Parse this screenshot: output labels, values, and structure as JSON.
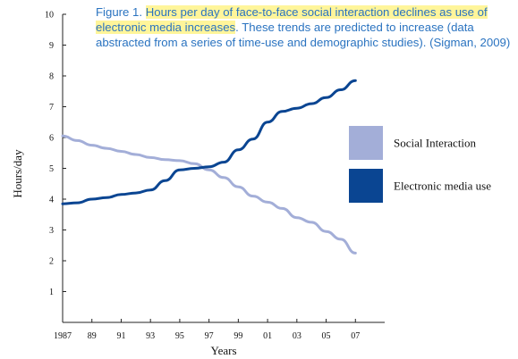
{
  "caption": {
    "prefix": "Figure 1. ",
    "highlight": "Hours per day of face-to-face social interaction declines as use of electronic media increases",
    "rest": ". These trends are predicted to increase (data abstracted from a series of time-use and demographic studies). (Sigman, 2009)"
  },
  "chart_data": {
    "type": "line",
    "xlabel": "Years",
    "ylabel": "Hours/day",
    "xlim": [
      1987,
      2009
    ],
    "ylim": [
      0,
      10
    ],
    "x_ticks": [
      1987,
      1989,
      1991,
      1993,
      1995,
      1997,
      1999,
      2001,
      2003,
      2005,
      2007
    ],
    "x_tick_labels": [
      "1987",
      "89",
      "91",
      "93",
      "95",
      "97",
      "99",
      "01",
      "03",
      "05",
      "07"
    ],
    "y_ticks": [
      1,
      2,
      3,
      4,
      5,
      6,
      7,
      8,
      9,
      10
    ],
    "y_tick_labels": [
      "1",
      "2",
      "3",
      "4",
      "5",
      "6",
      "7",
      "8",
      "9",
      "10"
    ],
    "grid": false,
    "legend_position": "right",
    "series": [
      {
        "name": "Social Interaction",
        "color": "#a3aed8",
        "points": [
          [
            1987,
            6.05
          ],
          [
            1988,
            5.9
          ],
          [
            1989,
            5.75
          ],
          [
            1990,
            5.65
          ],
          [
            1991,
            5.55
          ],
          [
            1992,
            5.45
          ],
          [
            1993,
            5.35
          ],
          [
            1994,
            5.28
          ],
          [
            1995,
            5.25
          ],
          [
            1996,
            5.15
          ],
          [
            1997,
            4.95
          ],
          [
            1998,
            4.7
          ],
          [
            1999,
            4.4
          ],
          [
            2000,
            4.1
          ],
          [
            2001,
            3.9
          ],
          [
            2002,
            3.7
          ],
          [
            2003,
            3.4
          ],
          [
            2004,
            3.25
          ],
          [
            2005,
            2.95
          ],
          [
            2006,
            2.7
          ],
          [
            2007,
            2.25
          ]
        ]
      },
      {
        "name": "Electronic media use",
        "color": "#0a4592",
        "points": [
          [
            1987,
            3.85
          ],
          [
            1988,
            3.88
          ],
          [
            1989,
            4.0
          ],
          [
            1990,
            4.05
          ],
          [
            1991,
            4.15
          ],
          [
            1992,
            4.2
          ],
          [
            1993,
            4.3
          ],
          [
            1994,
            4.6
          ],
          [
            1995,
            4.95
          ],
          [
            1996,
            5.0
          ],
          [
            1997,
            5.05
          ],
          [
            1998,
            5.2
          ],
          [
            1999,
            5.6
          ],
          [
            2000,
            5.95
          ],
          [
            2001,
            6.5
          ],
          [
            2002,
            6.85
          ],
          [
            2003,
            6.95
          ],
          [
            2004,
            7.1
          ],
          [
            2005,
            7.3
          ],
          [
            2006,
            7.55
          ],
          [
            2007,
            7.85
          ]
        ]
      }
    ]
  }
}
